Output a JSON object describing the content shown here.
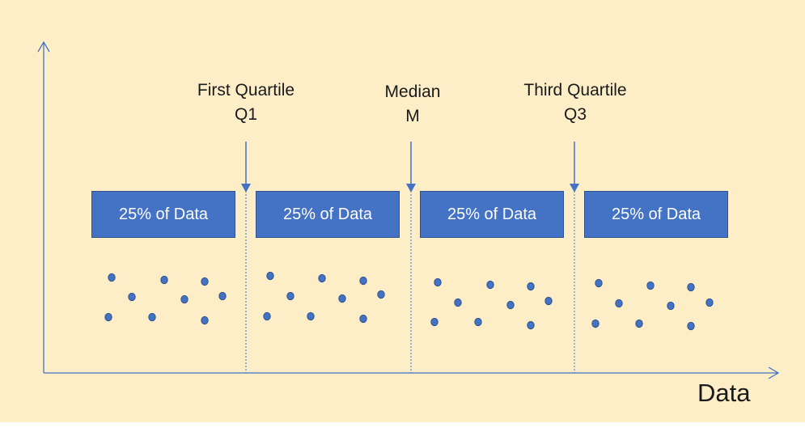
{
  "colors": {
    "background": "#fdeec7",
    "box_fill": "#4472c4",
    "box_text": "#ffffff",
    "dot_fill": "#4472c4",
    "axis": "#4472c4",
    "divider": "#4472c4"
  },
  "x_axis_label": "Data",
  "markers": [
    {
      "line1": "First Quartile",
      "line2": "Q1"
    },
    {
      "line1": "Median",
      "line2": "M"
    },
    {
      "line1": "Third Quartile",
      "line2": "Q3"
    }
  ],
  "segments": [
    {
      "label": "25% of Data"
    },
    {
      "label": "25% of Data"
    },
    {
      "label": "25% of Data"
    },
    {
      "label": "25% of Data"
    }
  ]
}
